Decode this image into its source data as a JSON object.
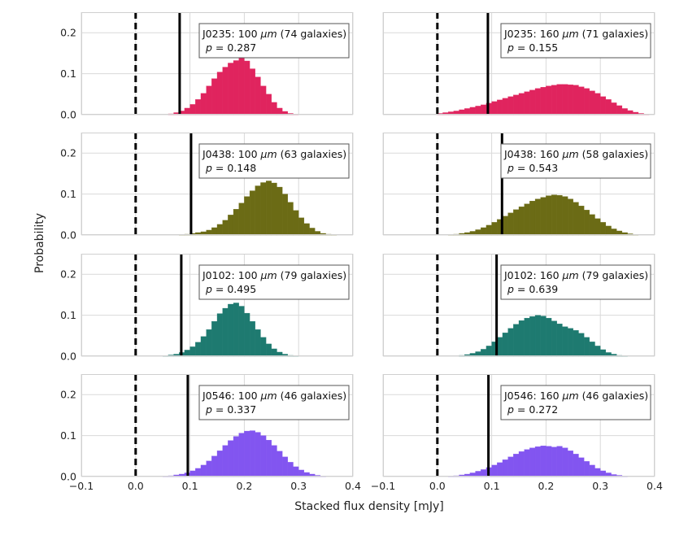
{
  "chart_data": {
    "type": "histogram-grid",
    "xlabel": "Stacked flux density [mJy]",
    "ylabel": "Probability",
    "xlim": [
      -0.1,
      0.4
    ],
    "ylim": [
      0,
      0.25
    ],
    "x_ticks": [
      "−0.1",
      "0.0",
      "0.1",
      "0.2",
      "0.3",
      "0.4"
    ],
    "y_ticks": [
      "0.0",
      "0.1",
      "0.2"
    ],
    "bin_width": 0.01,
    "bins_start": -0.1,
    "zero_line": 0.0,
    "panels": [
      {
        "field": "J0235",
        "band": "100",
        "unit": "μm",
        "galaxies": "(74 galaxies)",
        "p_label": "p",
        "p_value": "= 0.287",
        "color": "#e0245e",
        "stacked_value": 0.081,
        "row": 0,
        "col": 0,
        "probabilities": [
          0,
          0,
          0,
          0,
          0,
          0,
          0,
          0,
          0,
          0,
          0,
          0,
          0,
          0,
          0,
          0,
          0.002,
          0.005,
          0.009,
          0.016,
          0.025,
          0.037,
          0.052,
          0.07,
          0.088,
          0.104,
          0.116,
          0.126,
          0.132,
          0.139,
          0.131,
          0.112,
          0.092,
          0.07,
          0.05,
          0.03,
          0.016,
          0.008,
          0.003,
          0.001,
          0,
          0,
          0,
          0,
          0,
          0,
          0,
          0,
          0,
          0,
          0
        ]
      },
      {
        "field": "J0235",
        "band": "160",
        "unit": "μm",
        "galaxies": "(71 galaxies)",
        "p_label": "p",
        "p_value": "= 0.155",
        "color": "#e0245e",
        "stacked_value": 0.093,
        "row": 0,
        "col": 1,
        "probabilities": [
          0,
          0,
          0,
          0,
          0,
          0,
          0,
          0,
          0,
          0,
          0.003,
          0.005,
          0.007,
          0.009,
          0.012,
          0.015,
          0.018,
          0.021,
          0.024,
          0.028,
          0.032,
          0.036,
          0.04,
          0.044,
          0.048,
          0.052,
          0.056,
          0.06,
          0.064,
          0.067,
          0.07,
          0.072,
          0.074,
          0.074,
          0.073,
          0.072,
          0.068,
          0.064,
          0.058,
          0.052,
          0.044,
          0.037,
          0.029,
          0.022,
          0.015,
          0.01,
          0.006,
          0.003,
          0.001,
          0,
          0
        ]
      },
      {
        "field": "J0438",
        "band": "100",
        "unit": "μm",
        "galaxies": "(63 galaxies)",
        "p_label": "p",
        "p_value": "= 0.148",
        "color": "#6b6b15",
        "stacked_value": 0.102,
        "row": 1,
        "col": 0,
        "probabilities": [
          0,
          0,
          0,
          0,
          0,
          0,
          0,
          0,
          0,
          0,
          0,
          0,
          0,
          0,
          0,
          0,
          0,
          0,
          0.001,
          0.002,
          0.004,
          0.006,
          0.008,
          0.012,
          0.018,
          0.026,
          0.036,
          0.049,
          0.063,
          0.078,
          0.094,
          0.108,
          0.12,
          0.128,
          0.132,
          0.127,
          0.117,
          0.1,
          0.08,
          0.06,
          0.042,
          0.028,
          0.017,
          0.009,
          0.004,
          0.002,
          0.001,
          0,
          0,
          0,
          0
        ]
      },
      {
        "field": "J0438",
        "band": "160",
        "unit": "μm",
        "galaxies": "(58 galaxies)",
        "p_label": "p",
        "p_value": "= 0.543",
        "color": "#6b6b15",
        "stacked_value": 0.119,
        "row": 1,
        "col": 1,
        "probabilities": [
          0,
          0,
          0,
          0,
          0,
          0,
          0,
          0,
          0,
          0,
          0,
          0,
          0.001,
          0.002,
          0.004,
          0.006,
          0.009,
          0.013,
          0.018,
          0.024,
          0.031,
          0.038,
          0.046,
          0.054,
          0.062,
          0.069,
          0.076,
          0.083,
          0.088,
          0.092,
          0.096,
          0.098,
          0.097,
          0.094,
          0.088,
          0.08,
          0.071,
          0.061,
          0.05,
          0.04,
          0.031,
          0.022,
          0.015,
          0.01,
          0.006,
          0.003,
          0.001,
          0,
          0,
          0,
          0
        ]
      },
      {
        "field": "J0102",
        "band": "100",
        "unit": "μm",
        "galaxies": "(79 galaxies)",
        "p_label": "p",
        "p_value": "= 0.495",
        "color": "#1e7a70",
        "stacked_value": 0.084,
        "row": 2,
        "col": 0,
        "probabilities": [
          0,
          0,
          0,
          0,
          0,
          0,
          0,
          0,
          0,
          0,
          0,
          0,
          0,
          0,
          0,
          0.001,
          0.003,
          0.005,
          0.009,
          0.015,
          0.023,
          0.034,
          0.048,
          0.065,
          0.085,
          0.104,
          0.117,
          0.127,
          0.13,
          0.122,
          0.105,
          0.085,
          0.065,
          0.046,
          0.03,
          0.018,
          0.01,
          0.005,
          0.002,
          0.001,
          0,
          0,
          0,
          0,
          0,
          0,
          0,
          0,
          0,
          0,
          0
        ]
      },
      {
        "field": "J0102",
        "band": "160",
        "unit": "μm",
        "galaxies": "(79 galaxies)",
        "p_label": "p",
        "p_value": "= 0.639",
        "color": "#1e7a70",
        "stacked_value": 0.109,
        "row": 2,
        "col": 1,
        "probabilities": [
          0,
          0,
          0,
          0,
          0,
          0,
          0,
          0,
          0,
          0,
          0,
          0,
          0,
          0,
          0.002,
          0.004,
          0.007,
          0.011,
          0.017,
          0.025,
          0.035,
          0.046,
          0.057,
          0.068,
          0.078,
          0.087,
          0.093,
          0.097,
          0.1,
          0.098,
          0.093,
          0.086,
          0.079,
          0.072,
          0.068,
          0.063,
          0.056,
          0.046,
          0.035,
          0.025,
          0.016,
          0.009,
          0.005,
          0.002,
          0.001,
          0,
          0,
          0,
          0,
          0,
          0
        ]
      },
      {
        "field": "J0546",
        "band": "100",
        "unit": "μm",
        "galaxies": "(46 galaxies)",
        "p_label": "p",
        "p_value": "= 0.337",
        "color": "#8255f0",
        "stacked_value": 0.096,
        "row": 3,
        "col": 0,
        "probabilities": [
          0,
          0,
          0,
          0,
          0,
          0,
          0,
          0,
          0,
          0,
          0,
          0,
          0,
          0,
          0,
          0.001,
          0.002,
          0.004,
          0.006,
          0.009,
          0.014,
          0.02,
          0.028,
          0.038,
          0.05,
          0.063,
          0.076,
          0.088,
          0.098,
          0.106,
          0.111,
          0.112,
          0.108,
          0.1,
          0.089,
          0.076,
          0.062,
          0.048,
          0.035,
          0.024,
          0.016,
          0.01,
          0.006,
          0.003,
          0.001,
          0,
          0,
          0,
          0,
          0,
          0
        ]
      },
      {
        "field": "J0546",
        "band": "160",
        "unit": "μm",
        "galaxies": "(46 galaxies)",
        "p_label": "p",
        "p_value": "= 0.272",
        "color": "#8255f0",
        "stacked_value": 0.094,
        "row": 3,
        "col": 1,
        "probabilities": [
          0,
          0,
          0,
          0,
          0,
          0,
          0,
          0,
          0,
          0,
          0,
          0,
          0.001,
          0.002,
          0.004,
          0.006,
          0.009,
          0.013,
          0.017,
          0.022,
          0.028,
          0.034,
          0.041,
          0.048,
          0.055,
          0.061,
          0.066,
          0.07,
          0.073,
          0.075,
          0.074,
          0.072,
          0.074,
          0.07,
          0.063,
          0.055,
          0.046,
          0.037,
          0.028,
          0.02,
          0.014,
          0.009,
          0.005,
          0.003,
          0.001,
          0,
          0,
          0,
          0,
          0,
          0
        ]
      }
    ]
  }
}
